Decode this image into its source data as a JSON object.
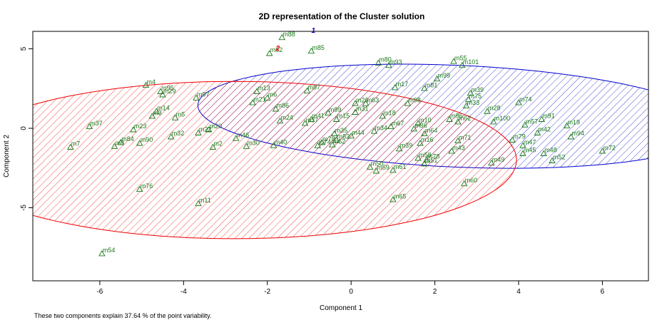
{
  "chart_data": {
    "type": "scatter",
    "title": "2D representation of the Cluster solution",
    "xlabel": "Component 1",
    "ylabel": "Component 2",
    "xlim": [
      -7.6,
      7.1
    ],
    "ylim": [
      -9.6,
      6.1
    ],
    "xticks": [
      -6,
      -4,
      -2,
      0,
      2,
      4,
      6
    ],
    "yticks": [
      -5,
      0,
      5
    ],
    "caption": "These two components explain 37.64 % of the point variability.",
    "colors": {
      "cluster_1": "#0000cc",
      "cluster_2": "#ee0000",
      "points": "#1a7a1a"
    },
    "clusters": [
      {
        "label": "1",
        "color": "#0000cc",
        "label_x": -0.9,
        "label_y": 6.0,
        "center": [
          2.53,
          0.76
        ],
        "rx": 6.24,
        "ry": 3.18,
        "rotation_deg": -8.5
      },
      {
        "label": "2",
        "color": "#ee0000",
        "label_x": -1.75,
        "label_y": 4.9,
        "center": [
          -2.8,
          -2.0
        ],
        "rx": 4.95,
        "ry": 6.75,
        "rotation_deg": 90
      }
    ],
    "points": [
      {
        "name": "m88",
        "x": -1.65,
        "y": 5.7
      },
      {
        "name": "m85",
        "x": -0.95,
        "y": 4.85
      },
      {
        "name": "m82",
        "x": -1.95,
        "y": 4.7
      },
      {
        "name": "m80",
        "x": 0.65,
        "y": 4.1
      },
      {
        "name": "m93",
        "x": 0.9,
        "y": 3.95
      },
      {
        "name": "m55",
        "x": 2.45,
        "y": 4.2
      },
      {
        "name": "m101",
        "x": 2.65,
        "y": 3.95
      },
      {
        "name": "m99",
        "x": 2.05,
        "y": 3.1
      },
      {
        "name": "m17",
        "x": 1.05,
        "y": 2.55
      },
      {
        "name": "m81",
        "x": 1.75,
        "y": 2.5
      },
      {
        "name": "m39",
        "x": 2.85,
        "y": 2.2
      },
      {
        "name": "m75",
        "x": 2.8,
        "y": 1.8
      },
      {
        "name": "m33",
        "x": 2.75,
        "y": 1.4
      },
      {
        "name": "m74",
        "x": 4.0,
        "y": 1.6
      },
      {
        "name": "m4",
        "x": -4.9,
        "y": 2.7
      },
      {
        "name": "m95",
        "x": -4.55,
        "y": 2.3
      },
      {
        "name": "m29",
        "x": -4.5,
        "y": 2.1
      },
      {
        "name": "m97",
        "x": -3.7,
        "y": 1.9
      },
      {
        "name": "m13",
        "x": -2.25,
        "y": 2.3
      },
      {
        "name": "m6",
        "x": -2.0,
        "y": 1.9
      },
      {
        "name": "m21",
        "x": -2.35,
        "y": 1.6
      },
      {
        "name": "m87",
        "x": -1.05,
        "y": 2.35
      },
      {
        "name": "m98",
        "x": 1.35,
        "y": 1.55
      },
      {
        "name": "m28",
        "x": 3.25,
        "y": 1.05
      },
      {
        "name": "m14",
        "x": -4.65,
        "y": 1.05
      },
      {
        "name": "m3",
        "x": -4.75,
        "y": 0.75
      },
      {
        "name": "m5",
        "x": -4.2,
        "y": 0.65
      },
      {
        "name": "m86",
        "x": -1.8,
        "y": 1.2
      },
      {
        "name": "m99b",
        "x": -0.55,
        "y": 0.95
      },
      {
        "name": "m15",
        "x": -0.35,
        "y": 0.55
      },
      {
        "name": "m31",
        "x": 0.1,
        "y": 1.0
      },
      {
        "name": "m18",
        "x": 0.75,
        "y": 0.75
      },
      {
        "name": "m41",
        "x": -0.95,
        "y": 0.55
      },
      {
        "name": "m37",
        "x": -1.1,
        "y": 0.3
      },
      {
        "name": "m96",
        "x": 2.35,
        "y": 0.55
      },
      {
        "name": "m62",
        "x": 2.55,
        "y": 0.4
      },
      {
        "name": "m100",
        "x": 3.4,
        "y": 0.4
      },
      {
        "name": "m91",
        "x": 4.55,
        "y": 0.55
      },
      {
        "name": "m57",
        "x": 4.15,
        "y": 0.2
      },
      {
        "name": "m19",
        "x": 5.15,
        "y": 0.15
      },
      {
        "name": "m42",
        "x": 4.45,
        "y": -0.3
      },
      {
        "name": "m94",
        "x": 5.25,
        "y": -0.55
      },
      {
        "name": "m37b",
        "x": -6.25,
        "y": 0.1
      },
      {
        "name": "m23",
        "x": -5.2,
        "y": -0.1
      },
      {
        "name": "m22",
        "x": -3.65,
        "y": -0.3
      },
      {
        "name": "m20",
        "x": -3.4,
        "y": -0.1
      },
      {
        "name": "m32",
        "x": -4.3,
        "y": -0.55
      },
      {
        "name": "m46",
        "x": -2.75,
        "y": -0.65
      },
      {
        "name": "m35",
        "x": -0.4,
        "y": -0.35
      },
      {
        "name": "m44",
        "x": 0.0,
        "y": -0.5
      },
      {
        "name": "m34",
        "x": 0.55,
        "y": -0.2
      },
      {
        "name": "m67",
        "x": 0.95,
        "y": 0.1
      },
      {
        "name": "m84",
        "x": -5.5,
        "y": -0.9
      },
      {
        "name": "m8",
        "x": -5.65,
        "y": -1.15
      },
      {
        "name": "m90",
        "x": -5.05,
        "y": -0.95
      },
      {
        "name": "m2",
        "x": -3.3,
        "y": -1.2
      },
      {
        "name": "m30",
        "x": -2.5,
        "y": -1.15
      },
      {
        "name": "m40",
        "x": -1.85,
        "y": -1.1
      },
      {
        "name": "m7",
        "x": -6.7,
        "y": -1.2
      },
      {
        "name": "m74b",
        "x": -0.8,
        "y": -1.1
      },
      {
        "name": "m78",
        "x": -0.7,
        "y": -0.9
      },
      {
        "name": "m82b",
        "x": -0.35,
        "y": -0.75
      },
      {
        "name": "m52",
        "x": -0.45,
        "y": -1.05
      },
      {
        "name": "m71",
        "x": 2.55,
        "y": -0.8
      },
      {
        "name": "m79",
        "x": 3.85,
        "y": -0.75
      },
      {
        "name": "m47",
        "x": 4.1,
        "y": -1.1
      },
      {
        "name": "m43",
        "x": 2.4,
        "y": -1.45
      },
      {
        "name": "m45",
        "x": 4.1,
        "y": -1.6
      },
      {
        "name": "m48",
        "x": 4.6,
        "y": -1.6
      },
      {
        "name": "m72",
        "x": 6.0,
        "y": -1.45
      },
      {
        "name": "m49",
        "x": 3.35,
        "y": -2.2
      },
      {
        "name": "m52b",
        "x": 4.8,
        "y": -2.05
      },
      {
        "name": "m39b",
        "x": 1.15,
        "y": -1.3
      },
      {
        "name": "m36",
        "x": 1.5,
        "y": -0.05
      },
      {
        "name": "m16",
        "x": 1.65,
        "y": -0.95
      },
      {
        "name": "m58",
        "x": 1.6,
        "y": -1.9
      },
      {
        "name": "m78b",
        "x": 1.8,
        "y": -2.0
      },
      {
        "name": "m51",
        "x": 1.75,
        "y": -2.25
      },
      {
        "name": "m50",
        "x": 0.45,
        "y": -2.45
      },
      {
        "name": "m59",
        "x": 0.6,
        "y": -2.7
      },
      {
        "name": "m61",
        "x": 1.0,
        "y": -2.65
      },
      {
        "name": "m60",
        "x": 2.7,
        "y": -3.5
      },
      {
        "name": "m76",
        "x": -5.05,
        "y": -3.85
      },
      {
        "name": "m11",
        "x": -3.65,
        "y": -4.75
      },
      {
        "name": "m65",
        "x": 1.0,
        "y": -4.5
      },
      {
        "name": "m54",
        "x": -5.95,
        "y": -7.9
      },
      {
        "name": "m26",
        "x": 0.1,
        "y": 1.55
      },
      {
        "name": "m63",
        "x": 0.35,
        "y": 1.55
      },
      {
        "name": "m24",
        "x": -1.7,
        "y": 0.45
      },
      {
        "name": "m10",
        "x": 1.6,
        "y": 0.3
      },
      {
        "name": "m64",
        "x": 1.75,
        "y": -0.35
      }
    ]
  }
}
